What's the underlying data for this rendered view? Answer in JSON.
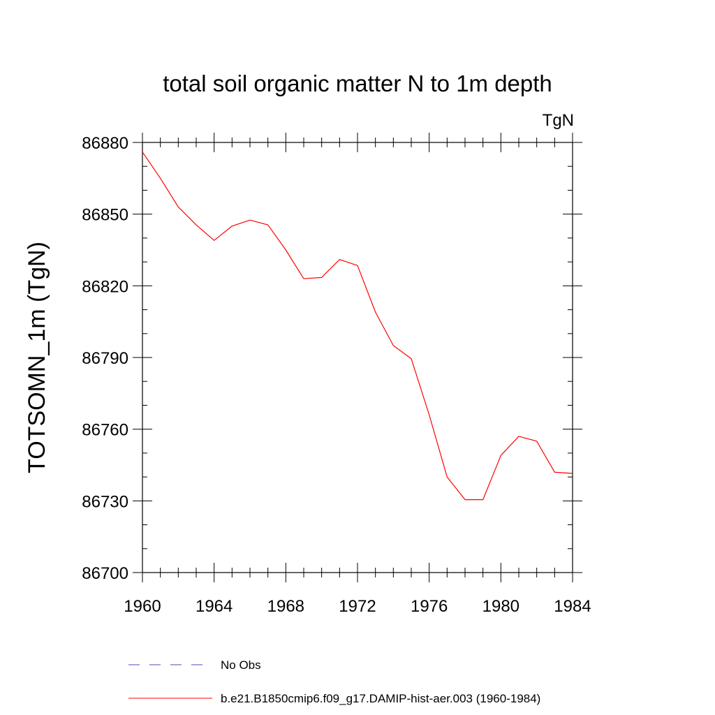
{
  "chart_data": {
    "type": "line",
    "title": "total soil organic matter N to 1m depth",
    "units_label": "TgN",
    "ylabel": "TOTSOMN_1m  (TgN)",
    "xlabel": "",
    "xlim": [
      1960,
      1984
    ],
    "ylim": [
      86700,
      86880
    ],
    "x_ticks": [
      1960,
      1964,
      1968,
      1972,
      1976,
      1980,
      1984
    ],
    "y_ticks": [
      86700,
      86730,
      86760,
      86790,
      86820,
      86850,
      86880
    ],
    "grid": false,
    "legend_position": "bottom",
    "series": [
      {
        "name": "b.e21.B1850cmip6.f09_g17.DAMIP-hist-aer.003 (1960-1984)",
        "color": "#ff0000",
        "style": "solid",
        "x": [
          1960,
          1961,
          1962,
          1963,
          1964,
          1965,
          1966,
          1967,
          1968,
          1969,
          1970,
          1971,
          1972,
          1973,
          1974,
          1975,
          1976,
          1977,
          1978,
          1979,
          1980,
          1981,
          1982,
          1983,
          1984
        ],
        "y": [
          86876,
          86865,
          86853,
          86845.5,
          86839,
          86845,
          86847.5,
          86845.5,
          86835,
          86823,
          86823.5,
          86831,
          86828.5,
          86809,
          86795,
          86789.5,
          86766,
          86740,
          86730.5,
          86730.5,
          86749,
          86757,
          86755,
          86742,
          86741.5
        ]
      }
    ],
    "legend": [
      {
        "label": "No Obs",
        "color": "#4b4bb4",
        "style": "dashed"
      },
      {
        "label": "b.e21.B1850cmip6.f09_g17.DAMIP-hist-aer.003 (1960-1984)",
        "color": "#ff0000",
        "style": "solid"
      }
    ]
  }
}
